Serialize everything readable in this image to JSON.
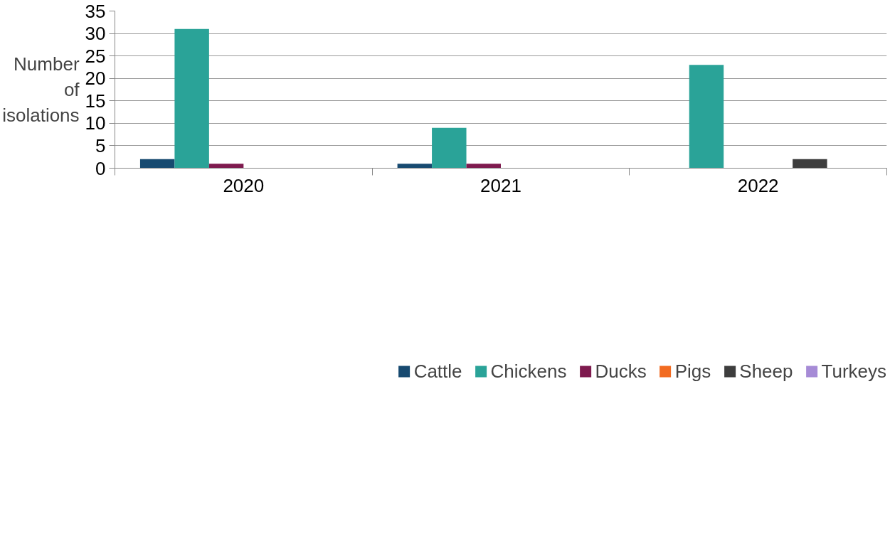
{
  "chart_data": {
    "type": "bar",
    "ylabel": "Number of isolations",
    "categories": [
      "2020",
      "2021",
      "2022"
    ],
    "series": [
      {
        "name": "Cattle",
        "color": "#174a70",
        "values": [
          2,
          1,
          0
        ]
      },
      {
        "name": "Chickens",
        "color": "#2aa398",
        "values": [
          31,
          9,
          23
        ]
      },
      {
        "name": "Ducks",
        "color": "#7e1a4e",
        "values": [
          1,
          1,
          0
        ]
      },
      {
        "name": "Pigs",
        "color": "#f26b21",
        "values": [
          0,
          0,
          0
        ]
      },
      {
        "name": "Sheep",
        "color": "#3d3d3d",
        "values": [
          0,
          0,
          2
        ]
      },
      {
        "name": "Turkeys",
        "color": "#a68bd6",
        "values": [
          0,
          0,
          0
        ]
      }
    ],
    "ylim": [
      0,
      35
    ],
    "yticks": [
      0,
      5,
      10,
      15,
      20,
      25,
      30,
      35
    ],
    "grid": "y",
    "legend": "bottom"
  }
}
